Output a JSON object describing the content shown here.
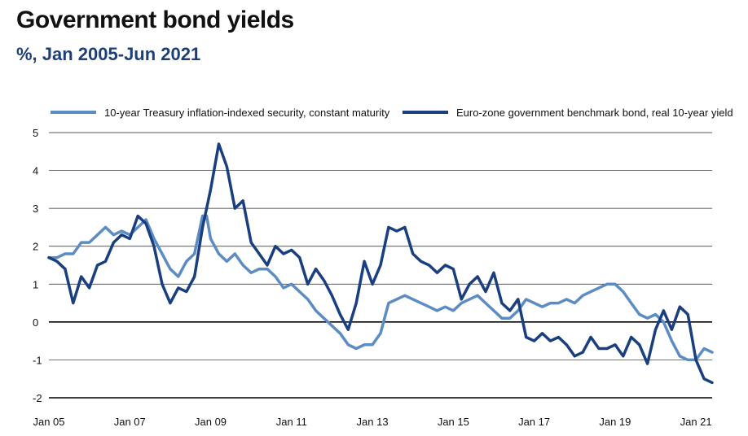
{
  "title": "Government bond yields",
  "subtitle": "%, Jan 2005-Jun 2021",
  "colors": {
    "us": "#5b8cc4",
    "ez": "#1a3f80",
    "grid": "#222222",
    "zero": "#000000"
  },
  "chart_data": {
    "type": "line",
    "title": "Government bond yields",
    "subtitle": "%, Jan 2005-Jun 2021",
    "xlabel": "",
    "ylabel": "",
    "ylim": [
      -2,
      5
    ],
    "xlim": [
      "2005-01",
      "2021-06"
    ],
    "yticks": [
      5,
      4,
      3,
      2,
      1,
      0,
      -1,
      -2
    ],
    "ytick_labels": [
      "5",
      "4",
      "3",
      "2",
      "1",
      "0",
      "-1",
      "-2"
    ],
    "xticks": [
      2005,
      2007,
      2009,
      2011,
      2013,
      2015,
      2017,
      2019,
      2021
    ],
    "xtick_labels": [
      "Jan 05",
      "Jan 07",
      "Jan 09",
      "Jan 11",
      "Jan 13",
      "Jan 15",
      "Jan 17",
      "Jan 19",
      "Jan 21"
    ],
    "grid": true,
    "legend_position": "top",
    "series": [
      {
        "name": "10-year Treasury inflation-indexed security, constant maturity",
        "color": "#5b8cc4",
        "x": [
          2005.0,
          2005.2,
          2005.4,
          2005.6,
          2005.8,
          2006.0,
          2006.2,
          2006.4,
          2006.6,
          2006.8,
          2007.0,
          2007.2,
          2007.4,
          2007.6,
          2007.8,
          2008.0,
          2008.2,
          2008.4,
          2008.6,
          2008.8,
          2008.9,
          2009.0,
          2009.2,
          2009.4,
          2009.6,
          2009.8,
          2010.0,
          2010.2,
          2010.4,
          2010.6,
          2010.8,
          2011.0,
          2011.2,
          2011.4,
          2011.6,
          2011.8,
          2012.0,
          2012.2,
          2012.4,
          2012.6,
          2012.8,
          2013.0,
          2013.2,
          2013.4,
          2013.6,
          2013.8,
          2014.0,
          2014.2,
          2014.4,
          2014.6,
          2014.8,
          2015.0,
          2015.2,
          2015.4,
          2015.6,
          2015.8,
          2016.0,
          2016.2,
          2016.4,
          2016.6,
          2016.8,
          2017.0,
          2017.2,
          2017.4,
          2017.6,
          2017.8,
          2018.0,
          2018.2,
          2018.4,
          2018.6,
          2018.8,
          2019.0,
          2019.2,
          2019.4,
          2019.6,
          2019.8,
          2020.0,
          2020.2,
          2020.4,
          2020.6,
          2020.8,
          2021.0,
          2021.2,
          2021.4
        ],
        "y": [
          1.7,
          1.7,
          1.8,
          1.8,
          2.1,
          2.1,
          2.3,
          2.5,
          2.3,
          2.4,
          2.3,
          2.5,
          2.7,
          2.2,
          1.8,
          1.4,
          1.2,
          1.6,
          1.8,
          2.8,
          2.8,
          2.2,
          1.8,
          1.6,
          1.8,
          1.5,
          1.3,
          1.4,
          1.4,
          1.2,
          0.9,
          1.0,
          0.8,
          0.6,
          0.3,
          0.1,
          -0.1,
          -0.3,
          -0.6,
          -0.7,
          -0.6,
          -0.6,
          -0.3,
          0.5,
          0.6,
          0.7,
          0.6,
          0.5,
          0.4,
          0.3,
          0.4,
          0.3,
          0.5,
          0.6,
          0.7,
          0.5,
          0.3,
          0.1,
          0.1,
          0.3,
          0.6,
          0.5,
          0.4,
          0.5,
          0.5,
          0.6,
          0.5,
          0.7,
          0.8,
          0.9,
          1.0,
          1.0,
          0.8,
          0.5,
          0.2,
          0.1,
          0.2,
          0.0,
          -0.5,
          -0.9,
          -1.0,
          -1.0,
          -0.7,
          -0.8
        ]
      },
      {
        "name": "Euro-zone government benchmark bond, real 10-year yield",
        "color": "#1a3f80",
        "x": [
          2005.0,
          2005.2,
          2005.4,
          2005.6,
          2005.8,
          2006.0,
          2006.2,
          2006.4,
          2006.6,
          2006.8,
          2007.0,
          2007.2,
          2007.4,
          2007.6,
          2007.8,
          2008.0,
          2008.2,
          2008.4,
          2008.6,
          2008.8,
          2008.9,
          2009.0,
          2009.2,
          2009.4,
          2009.6,
          2009.8,
          2010.0,
          2010.2,
          2010.4,
          2010.6,
          2010.8,
          2011.0,
          2011.2,
          2011.4,
          2011.6,
          2011.8,
          2012.0,
          2012.2,
          2012.4,
          2012.6,
          2012.8,
          2013.0,
          2013.2,
          2013.4,
          2013.6,
          2013.8,
          2014.0,
          2014.2,
          2014.4,
          2014.6,
          2014.8,
          2015.0,
          2015.2,
          2015.4,
          2015.6,
          2015.8,
          2016.0,
          2016.2,
          2016.4,
          2016.6,
          2016.8,
          2017.0,
          2017.2,
          2017.4,
          2017.6,
          2017.8,
          2018.0,
          2018.2,
          2018.4,
          2018.6,
          2018.8,
          2019.0,
          2019.2,
          2019.4,
          2019.6,
          2019.8,
          2020.0,
          2020.2,
          2020.4,
          2020.6,
          2020.8,
          2021.0,
          2021.2,
          2021.4
        ],
        "y": [
          1.7,
          1.6,
          1.4,
          0.5,
          1.2,
          0.9,
          1.5,
          1.6,
          2.1,
          2.3,
          2.2,
          2.8,
          2.6,
          2.0,
          1.0,
          0.5,
          0.9,
          0.8,
          1.2,
          2.5,
          3.0,
          3.5,
          4.7,
          4.1,
          3.0,
          3.2,
          2.1,
          1.8,
          1.5,
          2.0,
          1.8,
          1.9,
          1.7,
          1.0,
          1.4,
          1.1,
          0.7,
          0.2,
          -0.2,
          0.5,
          1.6,
          1.0,
          1.5,
          2.5,
          2.4,
          2.5,
          1.8,
          1.6,
          1.5,
          1.3,
          1.5,
          1.4,
          0.6,
          1.0,
          1.2,
          0.8,
          1.3,
          0.5,
          0.3,
          0.6,
          -0.4,
          -0.5,
          -0.3,
          -0.5,
          -0.4,
          -0.6,
          -0.9,
          -0.8,
          -0.4,
          -0.7,
          -0.7,
          -0.6,
          -0.9,
          -0.4,
          -0.6,
          -1.1,
          -0.2,
          0.3,
          -0.2,
          0.4,
          0.2,
          -1.0,
          -1.5,
          -1.6
        ]
      }
    ]
  }
}
